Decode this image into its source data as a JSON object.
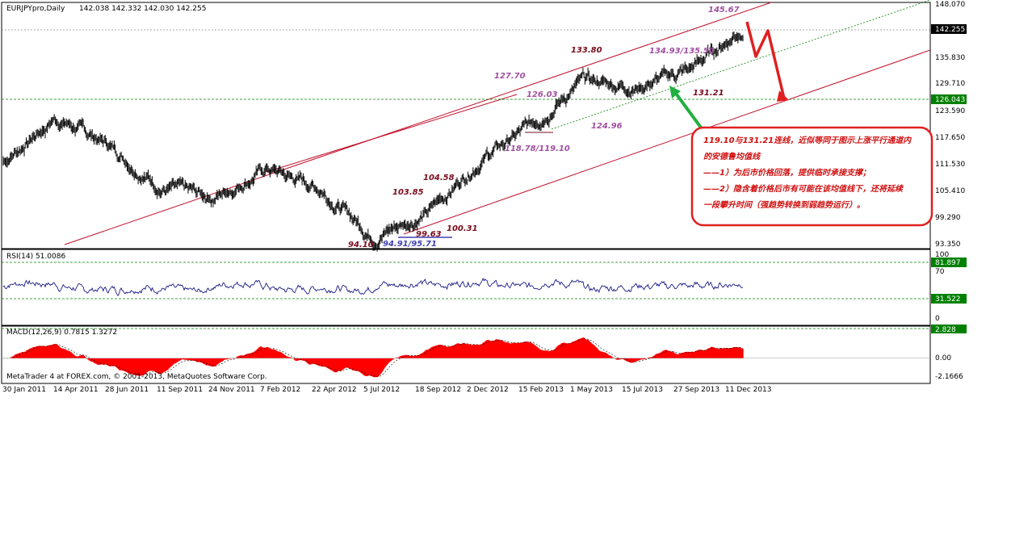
{
  "window": {
    "title": "EURJPYpro,Daily",
    "ohlc": "142.038 142.332 142.030 142.255"
  },
  "copyright": "MetaTrader 4 at FOREX.com, © 2001-2013, MetaQuotes Software Corp.",
  "colors": {
    "channel": "#c0102a",
    "annotation_red": "#7a0c1c",
    "annotation_purple": "#a050a0",
    "annotation_blue": "#4040b0",
    "green_line": "#008000",
    "price_line": "#000000",
    "rsi_line": "#00007a",
    "macd_fill": "#ff0000",
    "label_bg": "#000000",
    "label_green": "#008000"
  },
  "price_axis": {
    "ticks": [
      "148.070",
      "135.830",
      "129.710",
      "123.590",
      "117.650",
      "111.530",
      "105.410",
      "99.290",
      "93.350"
    ],
    "current_label": "142.255",
    "level_label": "126.043"
  },
  "rsi": {
    "title": "RSI(14) 51.0086",
    "ticks": [
      "100",
      "70",
      "0"
    ],
    "upper_label": "81.897",
    "lower_label": "31.522"
  },
  "macd": {
    "title": "MACD(12,26,9) 0.7815 1.3272",
    "ticks": [
      "0.00",
      "-2.1666"
    ],
    "top_label": "2.828"
  },
  "dates": [
    "30 Jan 2011",
    "14 Apr 2011",
    "28 Jun 2011",
    "11 Sep 2011",
    "24 Nov 2011",
    "7 Feb 2012",
    "22 Apr 2012",
    "5 Jul 2012",
    "18 Sep 2012",
    "2 Dec 2012",
    "15 Feb 2013",
    "1 May 2013",
    "15 Jul 2013",
    "27 Sep 2013",
    "11 Dec 2013"
  ],
  "annotations": [
    {
      "text": "145.67",
      "color": "purple"
    },
    {
      "text": "133.80",
      "color": "red"
    },
    {
      "text": "134.93/135.50",
      "color": "purple"
    },
    {
      "text": "127.70",
      "color": "purple"
    },
    {
      "text": "126.03",
      "color": "purple"
    },
    {
      "text": "131.21",
      "color": "red"
    },
    {
      "text": "124.96",
      "color": "purple"
    },
    {
      "text": "118.78/119.10",
      "color": "purple"
    },
    {
      "text": "104.58",
      "color": "red"
    },
    {
      "text": "103.85",
      "color": "red"
    },
    {
      "text": "100.31",
      "color": "red"
    },
    {
      "text": "99.63",
      "color": "red"
    },
    {
      "text": "94.10",
      "color": "red"
    },
    {
      "text": "94.91/95.71",
      "color": "blue"
    }
  ],
  "note": {
    "lines": [
      "119.10与131.21连线，近似等同于图示上涨平行通道内",
      "的安德鲁均值线",
      "——1）为后市价格回落，提供临时承接支撑；",
      "——2）隐含着价格后市有可能在该均值线下，还将延续",
      "一段攀升时间（强趋势转换到弱趋势运行）。"
    ]
  },
  "chart_data": {
    "type": "line",
    "title": "EURJPYpro,Daily",
    "xlabel": "",
    "ylabel": "",
    "x": [
      "30 Jan 2011",
      "14 Apr 2011",
      "28 Jun 2011",
      "11 Sep 2011",
      "24 Nov 2011",
      "7 Feb 2012",
      "22 Apr 2012",
      "5 Jul 2012",
      "18 Sep 2012",
      "2 Dec 2012",
      "15 Feb 2013",
      "1 May 2013",
      "15 Jul 2013",
      "27 Sep 2013",
      "11 Dec 2013"
    ],
    "series": [
      {
        "values": [
          112.0,
          122.0,
          116.0,
          106.0,
          104.0,
          110.5,
          106.0,
          95.0,
          100.0,
          112.0,
          120.5,
          130.5,
          129.0,
          133.0,
          142.3
        ]
      }
    ],
    "ylim": [
      93.35,
      148.07
    ],
    "grid": false,
    "indicators": {
      "rsi": {
        "name": "RSI(14)",
        "last": 51.0086,
        "levels": [
          81.897,
          31.522
        ],
        "ylim": [
          0,
          100
        ]
      },
      "macd": {
        "name": "MACD(12,26,9)",
        "main": 0.7815,
        "signal": 1.3272,
        "ylim": [
          -2.1666,
          2.828
        ]
      }
    }
  }
}
